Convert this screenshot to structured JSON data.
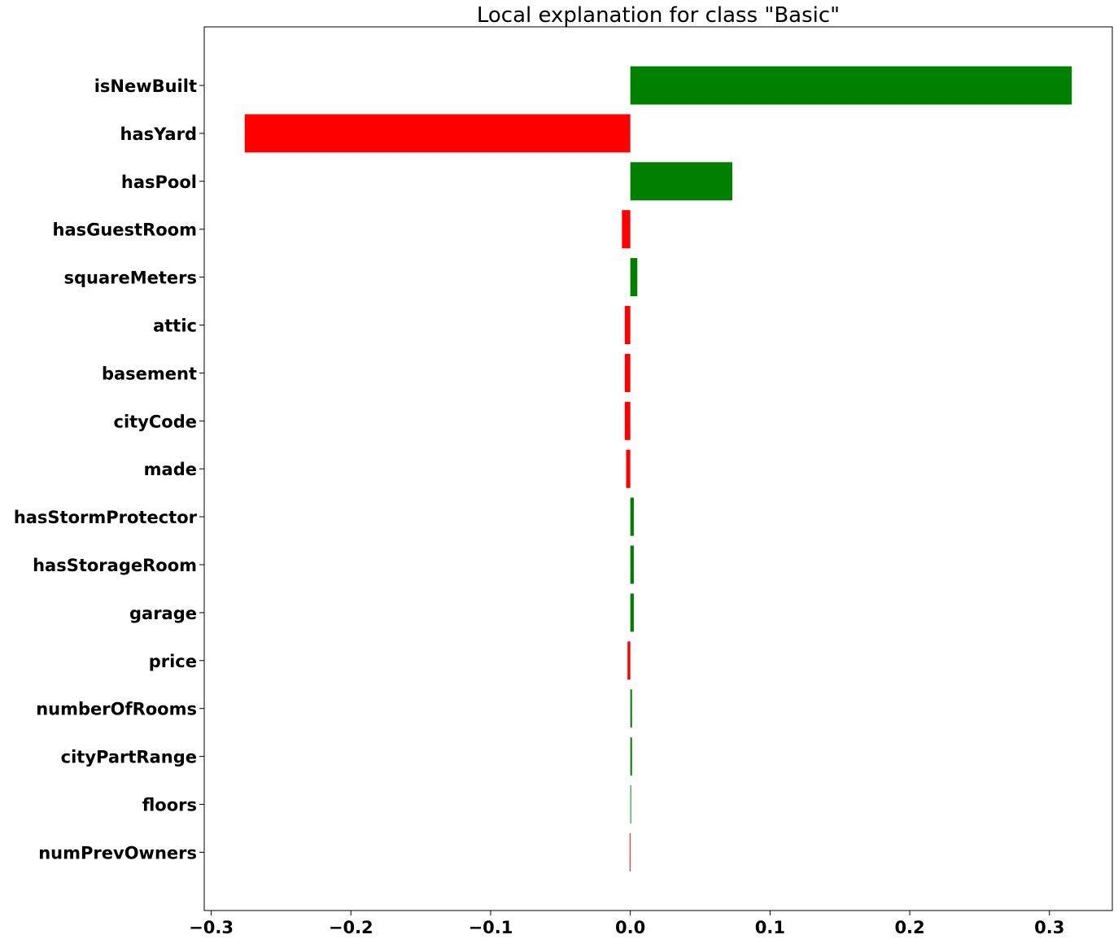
{
  "chart_data": {
    "type": "bar",
    "orientation": "horizontal",
    "title": "Local explanation for class \"Basic\"",
    "xlabel": "",
    "ylabel": "",
    "xlim": [
      -0.305,
      0.345
    ],
    "xticks": [
      -0.3,
      -0.2,
      -0.1,
      0.0,
      0.1,
      0.2,
      0.3
    ],
    "xtick_labels": [
      "−0.3",
      "−0.2",
      "−0.1",
      "0.0",
      "0.1",
      "0.2",
      "0.3"
    ],
    "grid": false,
    "categories": [
      "isNewBuilt",
      "hasYard",
      "hasPool",
      "hasGuestRoom",
      "squareMeters",
      "attic",
      "basement",
      "cityCode",
      "made",
      "hasStormProtector",
      "hasStorageRoom",
      "garage",
      "price",
      "numberOfRooms",
      "cityPartRange",
      "floors",
      "numPrevOwners"
    ],
    "values": [
      0.316,
      -0.276,
      0.073,
      -0.006,
      0.005,
      -0.004,
      -0.004,
      -0.004,
      -0.003,
      0.0025,
      0.0025,
      0.0025,
      -0.002,
      0.0012,
      0.0012,
      0.0005,
      -0.0005
    ],
    "colors": {
      "positive": "#008000",
      "negative": "#ff0000"
    }
  }
}
